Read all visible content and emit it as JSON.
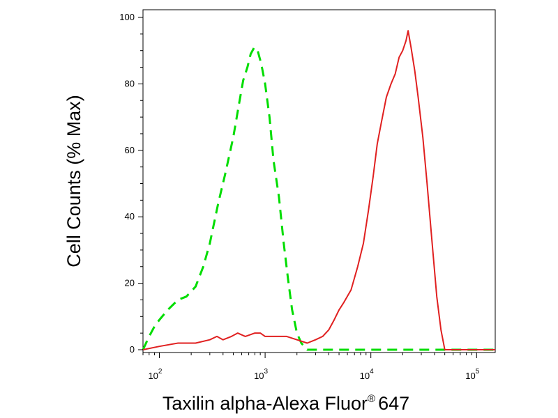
{
  "chart_data": {
    "type": "line",
    "xlabel": "Taxilin alpha-Alexa Fluor",
    "xlabel_mark": "®",
    "xlabel_suffix": "647",
    "ylabel": "Cell Counts (% Max)",
    "x_scale": "log",
    "xlim": [
      70,
      150000
    ],
    "ylim": [
      0,
      100
    ],
    "y_ticks": [
      0,
      20,
      40,
      60,
      80,
      100
    ],
    "x_ticks": [
      {
        "value": 100,
        "base": "10",
        "exp": "2"
      },
      {
        "value": 1000,
        "base": "10",
        "exp": "3"
      },
      {
        "value": 10000,
        "base": "10",
        "exp": "4"
      },
      {
        "value": 100000,
        "base": "10",
        "exp": "5"
      }
    ],
    "grid": false,
    "legend": "none",
    "series": [
      {
        "color": "#00dd00",
        "style": "dashed",
        "points": [
          [
            70,
            0
          ],
          [
            80,
            4
          ],
          [
            90,
            7
          ],
          [
            100,
            9
          ],
          [
            120,
            12
          ],
          [
            150,
            15
          ],
          [
            180,
            16
          ],
          [
            220,
            19
          ],
          [
            260,
            25
          ],
          [
            300,
            32
          ],
          [
            360,
            44
          ],
          [
            420,
            53
          ],
          [
            500,
            64
          ],
          [
            560,
            73
          ],
          [
            620,
            81
          ],
          [
            680,
            85
          ],
          [
            730,
            89
          ],
          [
            790,
            91
          ],
          [
            850,
            90
          ],
          [
            920,
            86
          ],
          [
            1000,
            80
          ],
          [
            1100,
            70
          ],
          [
            1200,
            57
          ],
          [
            1350,
            46
          ],
          [
            1500,
            32
          ],
          [
            1650,
            21
          ],
          [
            1800,
            12
          ],
          [
            2000,
            5
          ],
          [
            2200,
            2
          ],
          [
            2500,
            0
          ],
          [
            150000,
            0
          ]
        ]
      },
      {
        "color": "#e02020",
        "style": "solid",
        "points": [
          [
            70,
            0
          ],
          [
            100,
            1
          ],
          [
            150,
            2
          ],
          [
            220,
            2
          ],
          [
            300,
            3
          ],
          [
            350,
            4
          ],
          [
            400,
            3
          ],
          [
            480,
            4
          ],
          [
            550,
            5
          ],
          [
            650,
            4
          ],
          [
            800,
            5
          ],
          [
            900,
            5
          ],
          [
            1000,
            4
          ],
          [
            1300,
            4
          ],
          [
            1600,
            4
          ],
          [
            2000,
            3
          ],
          [
            2500,
            2
          ],
          [
            3000,
            3
          ],
          [
            3500,
            4
          ],
          [
            4000,
            6
          ],
          [
            4500,
            9
          ],
          [
            5000,
            12
          ],
          [
            5500,
            14
          ],
          [
            6500,
            18
          ],
          [
            7500,
            25
          ],
          [
            8500,
            32
          ],
          [
            9500,
            42
          ],
          [
            10500,
            52
          ],
          [
            11500,
            62
          ],
          [
            12500,
            68
          ],
          [
            14000,
            76
          ],
          [
            15500,
            80
          ],
          [
            17000,
            83
          ],
          [
            18500,
            88
          ],
          [
            20000,
            90
          ],
          [
            21500,
            93
          ],
          [
            22500,
            96
          ],
          [
            24000,
            91
          ],
          [
            26000,
            84
          ],
          [
            28000,
            76
          ],
          [
            31000,
            64
          ],
          [
            34000,
            50
          ],
          [
            38000,
            32
          ],
          [
            42000,
            16
          ],
          [
            46000,
            6
          ],
          [
            50000,
            0
          ],
          [
            150000,
            0
          ]
        ]
      }
    ]
  }
}
